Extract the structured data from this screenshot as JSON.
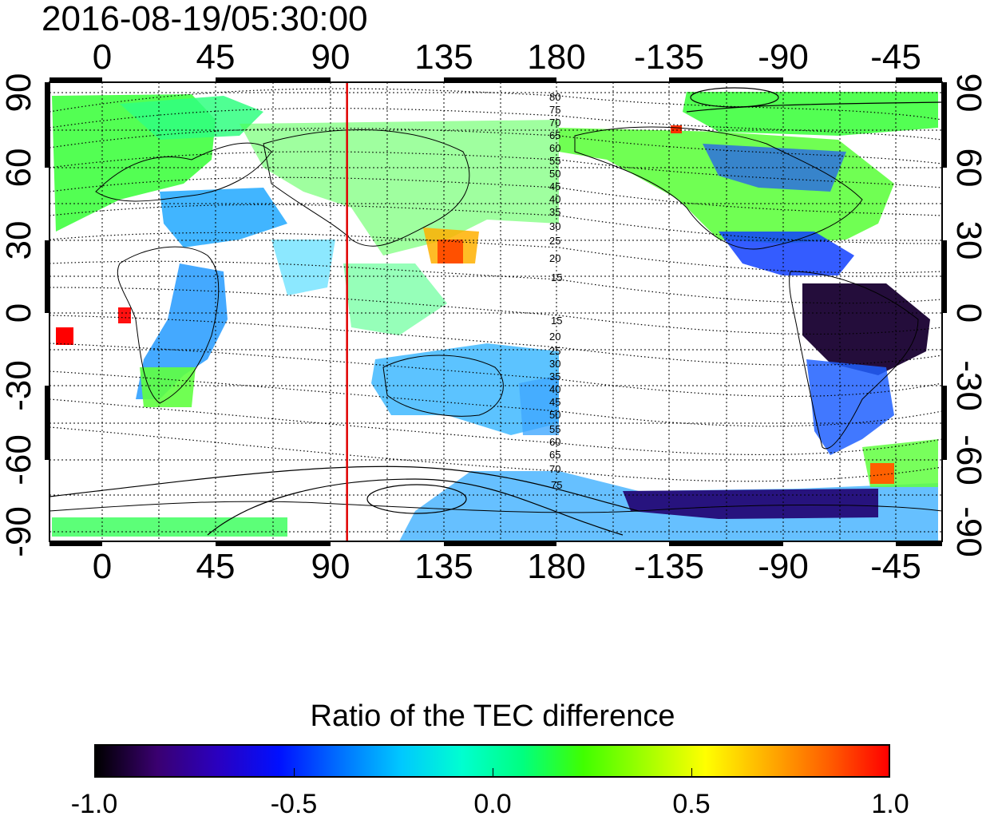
{
  "timestamp": "2016-08-19/05:30:00",
  "map": {
    "lon_ticks": [
      0,
      45,
      90,
      135,
      180,
      -135,
      -90,
      -45
    ],
    "lon_tick_labels": [
      "0",
      "45",
      "90",
      "135",
      "180",
      "-135",
      "-90",
      "-45"
    ],
    "lat_ticks": [
      90,
      60,
      30,
      0,
      -30,
      -60,
      -90
    ],
    "lat_tick_labels": [
      "90",
      "60",
      "30",
      "0",
      "-30",
      "-60",
      "-90"
    ],
    "lon_range_east_deg": [
      -20,
      340
    ],
    "lat_range": [
      -90,
      90
    ],
    "grid": true,
    "marker_meridian_lon": 100,
    "marker_color": "#e00000",
    "contour_labels_north": [
      "80",
      "75",
      "70",
      "65",
      "60",
      "55",
      "50",
      "45",
      "40",
      "35",
      "30",
      "25",
      "20",
      "15"
    ],
    "contour_labels_south": [
      "15",
      "20",
      "25",
      "30",
      "35",
      "40",
      "45",
      "50",
      "55",
      "60",
      "65",
      "70",
      "75"
    ]
  },
  "colorbar": {
    "title": "Ratio of the TEC difference",
    "range": [
      -1.0,
      1.0
    ],
    "tick_labels": [
      "-1.0",
      "-0.5",
      "0.0",
      "0.5",
      "1.0"
    ],
    "colors": [
      "#000000",
      "#3a0070",
      "#2a00c0",
      "#0010ff",
      "#0070ff",
      "#00c8ff",
      "#00ffd0",
      "#00ff80",
      "#40ff00",
      "#a0ff00",
      "#ffff00",
      "#ffb000",
      "#ff6000",
      "#ff0000"
    ]
  }
}
